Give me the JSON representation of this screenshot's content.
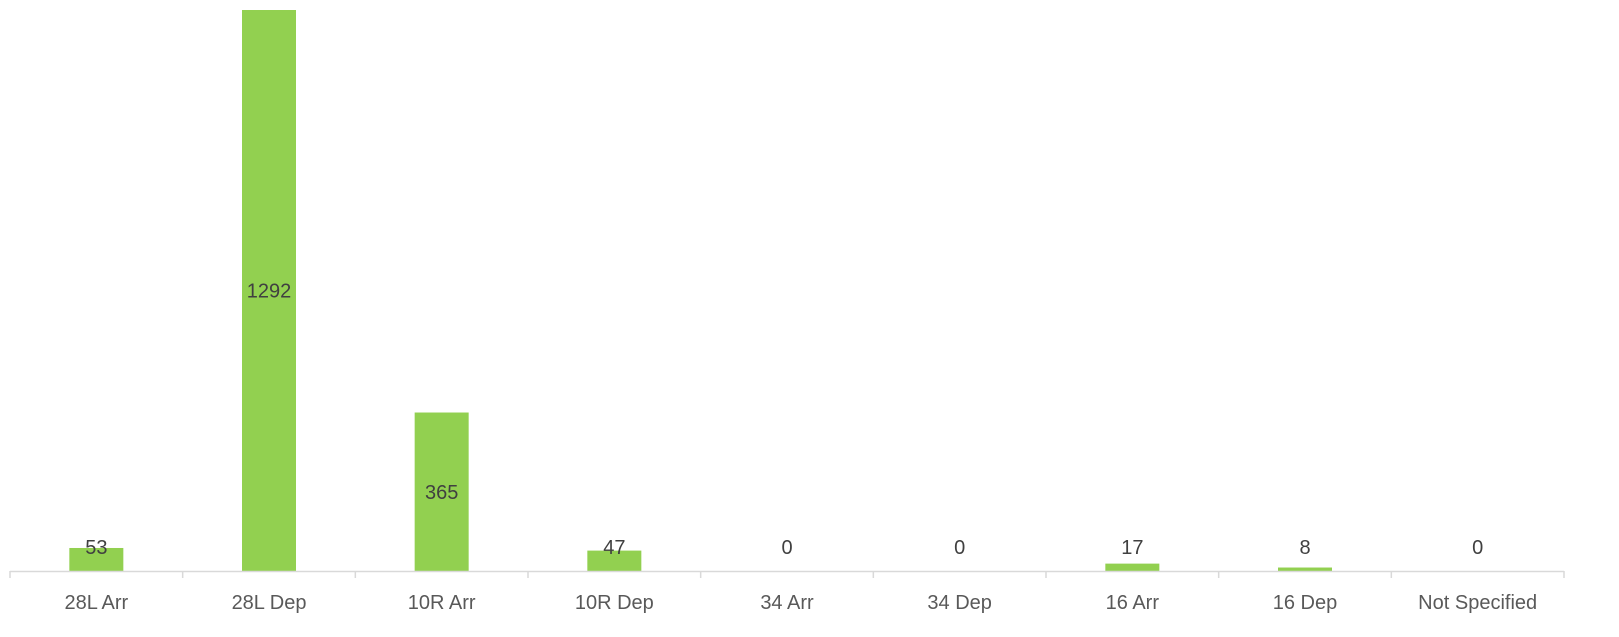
{
  "chart_data": {
    "type": "bar",
    "categories": [
      "28L Arr",
      "28L Dep",
      "10R Arr",
      "10R Dep",
      "34 Arr",
      "34 Dep",
      "16 Arr",
      "16 Dep",
      "Not Specified"
    ],
    "values": [
      53,
      1292,
      365,
      47,
      0,
      0,
      17,
      8,
      0
    ],
    "data_labels": [
      "53",
      "1292",
      "365",
      "47",
      "0",
      "0",
      "17",
      "8",
      "0"
    ],
    "ylim": [
      0,
      1292
    ],
    "grid": false,
    "legend": "none",
    "title": "",
    "xlabel": "",
    "ylabel": "",
    "colors": {
      "bar": "#92d050",
      "axis": "#d9d9d9",
      "data_label": "#404040",
      "tick_label": "#595959"
    }
  }
}
